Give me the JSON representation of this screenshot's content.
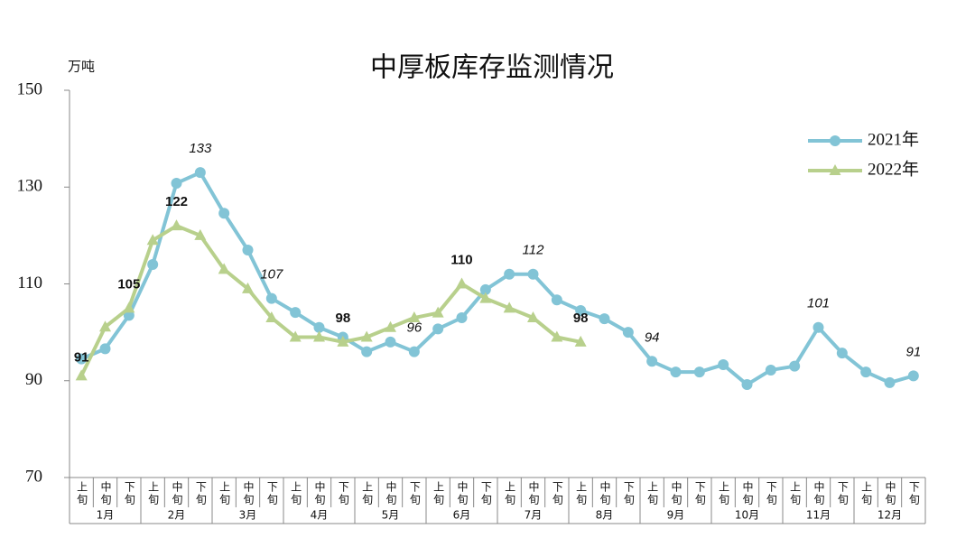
{
  "chart_data": {
    "type": "line",
    "title": "中厚板库存监测情况",
    "y_unit": "万吨",
    "categories": [
      "上旬",
      "中旬",
      "下旬",
      "上旬",
      "中旬",
      "下旬",
      "上旬",
      "中旬",
      "下旬",
      "上旬",
      "中旬",
      "下旬",
      "上旬",
      "中旬",
      "下旬",
      "上旬",
      "中旬",
      "下旬",
      "上旬",
      "中旬",
      "下旬",
      "上旬",
      "中旬",
      "下旬",
      "上旬",
      "中旬",
      "下旬",
      "上旬",
      "中旬",
      "下旬",
      "上旬",
      "中旬",
      "下旬",
      "上旬",
      "中旬",
      "下旬"
    ],
    "groups": [
      "1月",
      "2月",
      "3月",
      "4月",
      "5月",
      "6月",
      "7月",
      "8月",
      "9月",
      "10月",
      "11月",
      "12月"
    ],
    "ylim": [
      70,
      150
    ],
    "yticks": [
      70,
      90,
      110,
      130,
      150
    ],
    "legend": "upper right",
    "series": [
      {
        "name": "2021年",
        "color": "#82c4d6",
        "marker": "circle",
        "label_style": "italic",
        "values": [
          94.5,
          96.6,
          103.5,
          114,
          130.8,
          133,
          124.6,
          117,
          107,
          104.1,
          101,
          99,
          96,
          98,
          96,
          100.7,
          103,
          108.8,
          112,
          112,
          106.7,
          104.5,
          102.8,
          100,
          94,
          91.8,
          91.8,
          93.3,
          89.2,
          92.2,
          93,
          101,
          95.7,
          91.8,
          89.6,
          91
        ],
        "labeled": [
          5,
          8,
          14,
          19,
          24,
          31,
          35
        ]
      },
      {
        "name": "2022年",
        "color": "#b8d08c",
        "marker": "triangle",
        "label_style": "bold",
        "values": [
          91,
          101.1,
          105,
          119,
          122,
          120,
          113,
          109,
          103,
          99,
          99,
          98,
          99,
          101,
          103,
          104,
          110,
          107,
          105,
          103,
          99,
          98,
          null,
          null,
          null,
          null,
          null,
          null,
          null,
          null,
          null,
          null,
          null,
          null,
          null,
          null
        ],
        "labeled": [
          0,
          2,
          4,
          11,
          16,
          21
        ]
      }
    ]
  }
}
